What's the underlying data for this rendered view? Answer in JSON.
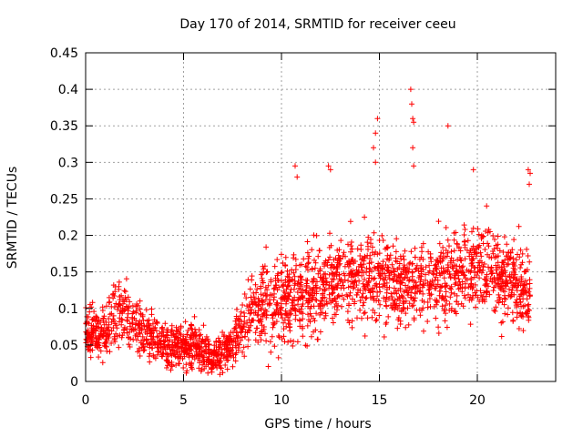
{
  "chart_data": {
    "type": "scatter",
    "title": "Day 170 of 2014, SRMTID for receiver ceeu",
    "xlabel": "GPS time / hours",
    "ylabel": "SRMTID / TECUs",
    "xlim": [
      0,
      24
    ],
    "ylim": [
      0,
      0.45
    ],
    "xticks": [
      0,
      5,
      10,
      15,
      20
    ],
    "yticks": [
      0,
      0.05,
      0.1,
      0.15,
      0.2,
      0.25,
      0.3,
      0.35,
      0.4,
      0.45
    ],
    "xtick_labels": [
      "0",
      "5",
      "10",
      "15",
      "20"
    ],
    "ytick_labels": [
      "0",
      "0.05",
      "0.1",
      "0.15",
      "0.2",
      "0.25",
      "0.3",
      "0.35",
      "0.4",
      "0.45"
    ],
    "grid": true,
    "marker": "+",
    "color": "#ff0000",
    "series": [
      {
        "name": "SRMTID",
        "x_range": [
          0,
          22.7
        ],
        "point_count": 2400,
        "trend": [
          {
            "x": 0.0,
            "mean": 0.07,
            "spread": 0.04
          },
          {
            "x": 1.0,
            "mean": 0.06,
            "spread": 0.05
          },
          {
            "x": 1.5,
            "mean": 0.1,
            "spread": 0.06
          },
          {
            "x": 2.5,
            "mean": 0.08,
            "spread": 0.05
          },
          {
            "x": 4.0,
            "mean": 0.05,
            "spread": 0.04
          },
          {
            "x": 5.5,
            "mean": 0.05,
            "spread": 0.04
          },
          {
            "x": 6.5,
            "mean": 0.03,
            "spread": 0.03
          },
          {
            "x": 7.5,
            "mean": 0.05,
            "spread": 0.04
          },
          {
            "x": 8.5,
            "mean": 0.1,
            "spread": 0.06
          },
          {
            "x": 10.0,
            "mean": 0.11,
            "spread": 0.08
          },
          {
            "x": 11.5,
            "mean": 0.12,
            "spread": 0.08
          },
          {
            "x": 13.0,
            "mean": 0.14,
            "spread": 0.07
          },
          {
            "x": 14.5,
            "mean": 0.15,
            "spread": 0.08
          },
          {
            "x": 16.0,
            "mean": 0.13,
            "spread": 0.07
          },
          {
            "x": 17.0,
            "mean": 0.14,
            "spread": 0.08
          },
          {
            "x": 18.5,
            "mean": 0.14,
            "spread": 0.07
          },
          {
            "x": 20.0,
            "mean": 0.16,
            "spread": 0.08
          },
          {
            "x": 21.5,
            "mean": 0.14,
            "spread": 0.07
          },
          {
            "x": 22.7,
            "mean": 0.12,
            "spread": 0.08
          }
        ],
        "spikes": [
          {
            "x": 14.9,
            "y": 0.36
          },
          {
            "x": 14.8,
            "y": 0.34
          },
          {
            "x": 14.7,
            "y": 0.32
          },
          {
            "x": 14.8,
            "y": 0.3
          },
          {
            "x": 16.6,
            "y": 0.4
          },
          {
            "x": 16.65,
            "y": 0.38
          },
          {
            "x": 16.7,
            "y": 0.36
          },
          {
            "x": 16.75,
            "y": 0.355
          },
          {
            "x": 16.7,
            "y": 0.32
          },
          {
            "x": 16.75,
            "y": 0.295
          },
          {
            "x": 18.5,
            "y": 0.35
          },
          {
            "x": 12.4,
            "y": 0.295
          },
          {
            "x": 12.5,
            "y": 0.29
          },
          {
            "x": 10.7,
            "y": 0.295
          },
          {
            "x": 10.8,
            "y": 0.28
          },
          {
            "x": 19.8,
            "y": 0.29
          },
          {
            "x": 22.6,
            "y": 0.29
          },
          {
            "x": 22.7,
            "y": 0.285
          },
          {
            "x": 22.65,
            "y": 0.27
          }
        ]
      }
    ]
  }
}
